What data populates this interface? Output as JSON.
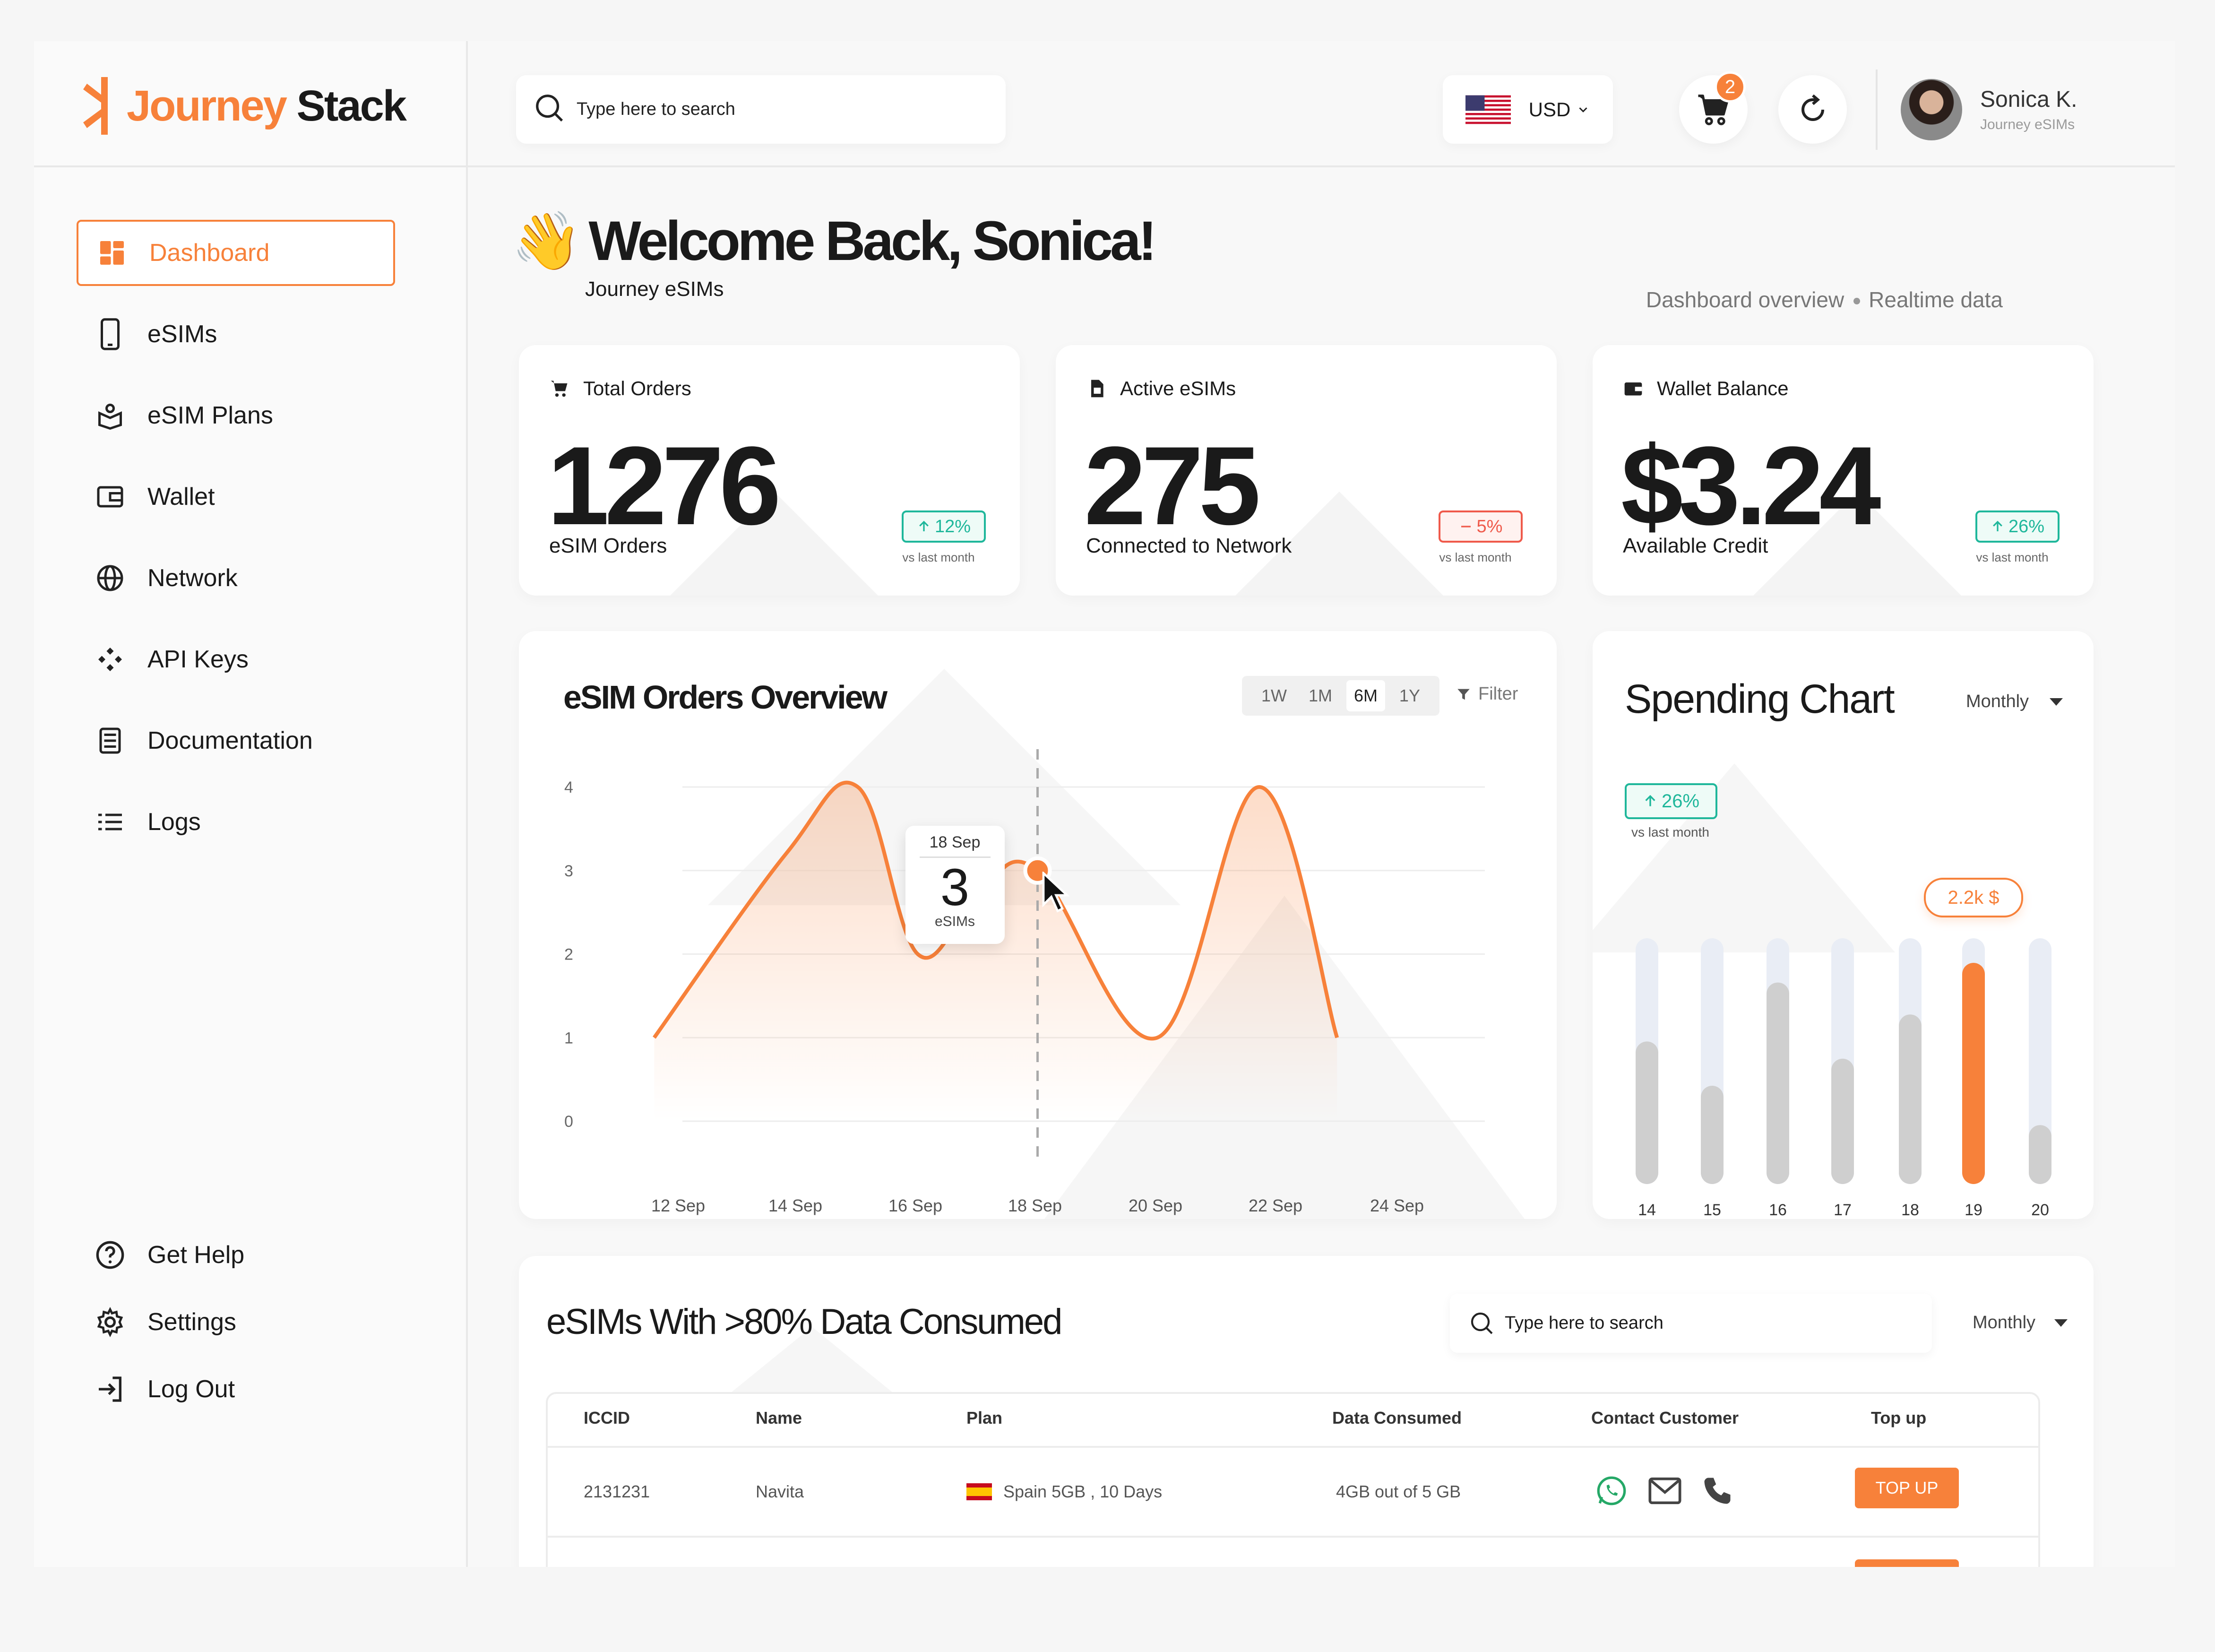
{
  "brand": {
    "name_part1": "Journey",
    "name_part2": "Stack",
    "accent": "#f7813a"
  },
  "search": {
    "placeholder": "Type here to search"
  },
  "header": {
    "currency": "USD",
    "cart_count": "2",
    "user_name": "Sonica K.",
    "user_org": "Journey eSIMs"
  },
  "sidebar": {
    "items": [
      {
        "label": "Dashboard",
        "icon": "dashboard-icon"
      },
      {
        "label": "eSIMs",
        "icon": "phone-icon"
      },
      {
        "label": "eSIM Plans",
        "icon": "plan-icon"
      },
      {
        "label": "Wallet",
        "icon": "wallet-icon"
      },
      {
        "label": "Network",
        "icon": "globe-icon"
      },
      {
        "label": "API Keys",
        "icon": "api-icon"
      },
      {
        "label": "Documentation",
        "icon": "document-icon"
      },
      {
        "label": "Logs",
        "icon": "list-icon"
      }
    ],
    "bottom": [
      {
        "label": "Get Help",
        "icon": "help-icon"
      },
      {
        "label": "Settings",
        "icon": "gear-icon"
      },
      {
        "label": "Log Out",
        "icon": "logout-icon"
      }
    ]
  },
  "welcome": {
    "title": "Welcome Back, Sonica!",
    "subtitle": "Journey eSIMs",
    "breadcrumb_1": "Dashboard overview",
    "breadcrumb_2": "Realtime data"
  },
  "stats": [
    {
      "title": "Total Orders",
      "value": "1276",
      "label": "eSIM Orders",
      "change": "12%",
      "direction": "up",
      "caption": "vs last month"
    },
    {
      "title": "Active eSIMs",
      "value": "275",
      "label": "Connected to Network",
      "change": "5%",
      "direction": "down",
      "caption": "vs last month"
    },
    {
      "title": "Wallet Balance",
      "value": "$3.24",
      "label": "Available Credit",
      "change": "26%",
      "direction": "up",
      "caption": "vs last month"
    }
  ],
  "orders_chart": {
    "title": "eSIM Orders Overview",
    "tabs": [
      "1W",
      "1M",
      "6M",
      "1Y"
    ],
    "active_tab": "6M",
    "filter_label": "Filter",
    "tooltip": {
      "date": "18 Sep",
      "value": "3",
      "unit": "eSIMs"
    }
  },
  "spending_chart": {
    "title": "Spending Chart",
    "period": "Monthly",
    "change": "26%",
    "caption": "vs last month",
    "tooltip": "2.2k $"
  },
  "chart_data": [
    {
      "type": "line",
      "title": "eSIM Orders Overview",
      "x": [
        "12 Sep",
        "14 Sep",
        "16 Sep",
        "18 Sep",
        "20 Sep",
        "22 Sep",
        "24 Sep"
      ],
      "y_ticks": [
        "0",
        "1",
        "2",
        "3",
        "4"
      ],
      "ylim": [
        0,
        4
      ],
      "points": [
        {
          "x": "11.6 Sep",
          "y": 1
        },
        {
          "x": "13.8 Sep",
          "y": 3.2
        },
        {
          "x": "15 Sep",
          "y": 4
        },
        {
          "x": "16 Sep",
          "y": 2
        },
        {
          "x": "17 Sep",
          "y": 2.7
        },
        {
          "x": "18 Sep",
          "y": 3
        },
        {
          "x": "20 Sep",
          "y": 1
        },
        {
          "x": "21.7 Sep",
          "y": 4
        },
        {
          "x": "23 Sep",
          "y": 1
        }
      ],
      "highlight": {
        "x": "18 Sep",
        "y": 3
      },
      "accent": "#f7813a"
    },
    {
      "type": "bar",
      "title": "Spending Chart",
      "categories": [
        "14",
        "15",
        "16",
        "17",
        "18",
        "19",
        "20"
      ],
      "values": [
        0.58,
        0.4,
        0.82,
        0.51,
        0.69,
        0.9,
        0.24
      ],
      "ylim": [
        0,
        1
      ],
      "highlight_index": 5,
      "highlight_color": "#f7813a",
      "bar_color": "#cfcfcf",
      "track_color": "#e9edf5"
    }
  ],
  "table": {
    "title": "eSIMs With >80% Data Consumed",
    "search_placeholder": "Type here to search",
    "period": "Monthly",
    "columns": [
      "ICCID",
      "Name",
      "Plan",
      "Data Consumed",
      "Contact Customer",
      "Top up"
    ],
    "rows": [
      {
        "iccid": "2131231",
        "name": "Navita",
        "plan": "Spain 5GB , 10 Days",
        "data": "4GB out of 5 GB",
        "action": "TOP UP"
      }
    ]
  }
}
